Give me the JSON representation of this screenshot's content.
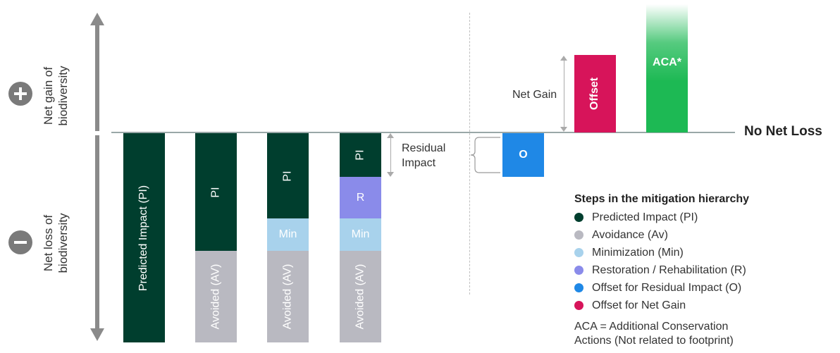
{
  "axis": {
    "top_label_line1": "Net gain of",
    "top_label_line2": "biodiversity",
    "bottom_label_line1": "Net loss of",
    "bottom_label_line2": "biodiversity"
  },
  "baseline_label": "No Net Loss",
  "bars": {
    "bar1_pi": "Predicted Impact (PI)",
    "bar2_pi": "PI",
    "bar2_av": "Avoided (AV)",
    "bar3_pi": "PI",
    "bar3_min": "Min",
    "bar3_av": "Avoided (AV)",
    "bar4_pi": "PI",
    "bar4_r": "R",
    "bar4_min": "Min",
    "bar4_av": "Avoided (AV)",
    "offset_o": "O",
    "offset_gain": "Offset",
    "aca": "ACA*"
  },
  "annotations": {
    "residual_line1": "Residual",
    "residual_line2": "Impact",
    "net_gain": "Net Gain"
  },
  "legend": {
    "title": "Steps in the mitigation hierarchy",
    "items": [
      {
        "label": "Predicted Impact (PI)",
        "color": "#003e2e"
      },
      {
        "label": "Avoidance (Av)",
        "color": "#b9b9c1"
      },
      {
        "label": "Minimization (Min)",
        "color": "#a8d2ec"
      },
      {
        "label": "Restoration / Rehabilitation (R)",
        "color": "#8a8bea"
      },
      {
        "label": "Offset for Residual Impact (O)",
        "color": "#1f88e6"
      },
      {
        "label": "Offset for Net Gain",
        "color": "#d7145a"
      }
    ],
    "note_line1": "ACA = Additional Conservation",
    "note_line2": "Actions (Not related to footprint)"
  },
  "colors": {
    "pi": "#003e2e",
    "avoidance": "#b9b9c1",
    "minimization": "#a8d2ec",
    "restoration": "#8a8bea",
    "offset_residual": "#1f88e6",
    "offset_gain": "#d7145a",
    "aca": "#1db954"
  }
}
